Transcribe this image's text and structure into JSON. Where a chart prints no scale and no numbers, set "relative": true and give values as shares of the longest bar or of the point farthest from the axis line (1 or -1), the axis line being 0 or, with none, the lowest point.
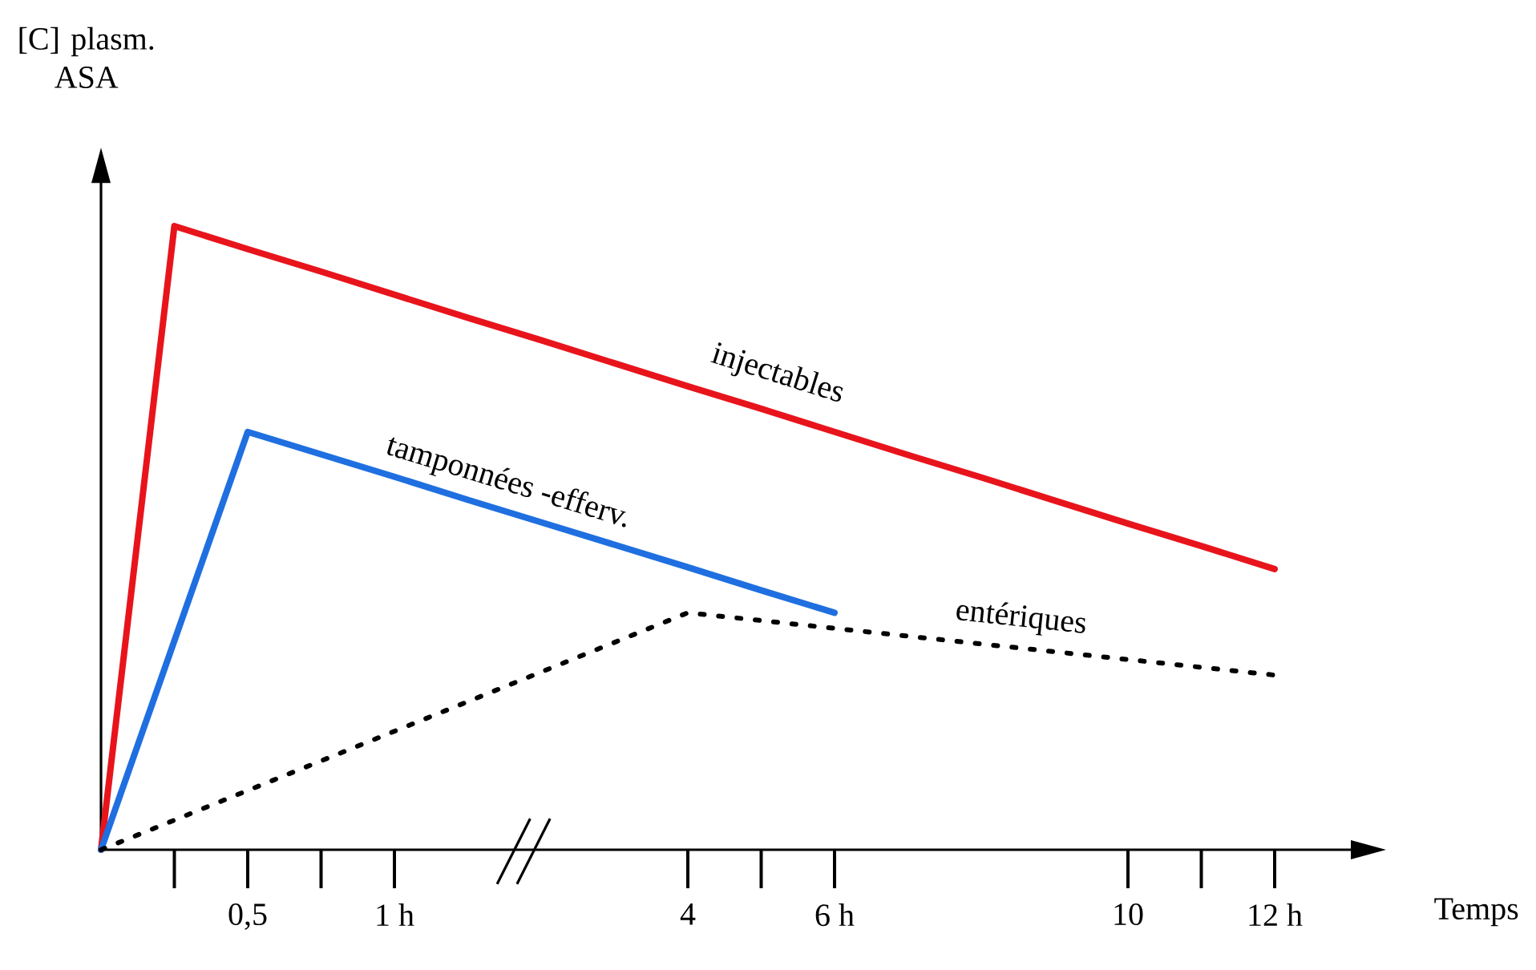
{
  "chart_data": {
    "type": "line",
    "ylabel": "[C] plasm. ASA",
    "xlabel": "Temps",
    "relative": true,
    "categories": [
      null,
      null,
      "0,5",
      null,
      "1 h",
      null,
      null,
      null,
      "4",
      null,
      "6 h",
      null,
      null,
      null,
      "10",
      null,
      "12 h"
    ],
    "grid": false,
    "legend": false,
    "marker": "none",
    "series": [
      {
        "name": "injectables",
        "color": "#e8141c",
        "line_style": "solid",
        "values": [
          0,
          1,
          0.963,
          0.927,
          0.89,
          0.853,
          0.817,
          0.78,
          0.743,
          0.707,
          0.67,
          0.633,
          0.597,
          0.56,
          0.523,
          0.487,
          0.45
        ]
      },
      {
        "name": "tamponnées -efferv.",
        "color": "#1f6fe0",
        "line_style": "solid",
        "values": [
          0,
          0.335,
          0.67,
          0.634,
          0.598,
          0.561,
          0.525,
          0.489,
          0.453,
          0.416,
          0.38,
          null,
          null,
          null,
          null,
          null,
          null
        ]
      },
      {
        "name": "entériques",
        "color": "#000000",
        "line_style": "dotted",
        "values": [
          0,
          0.0475,
          0.095,
          0.1425,
          0.19,
          0.2375,
          0.285,
          0.3325,
          0.38,
          0.3675,
          0.355,
          0.3425,
          0.33,
          0.3175,
          0.305,
          0.2925,
          0.28
        ]
      }
    ]
  }
}
